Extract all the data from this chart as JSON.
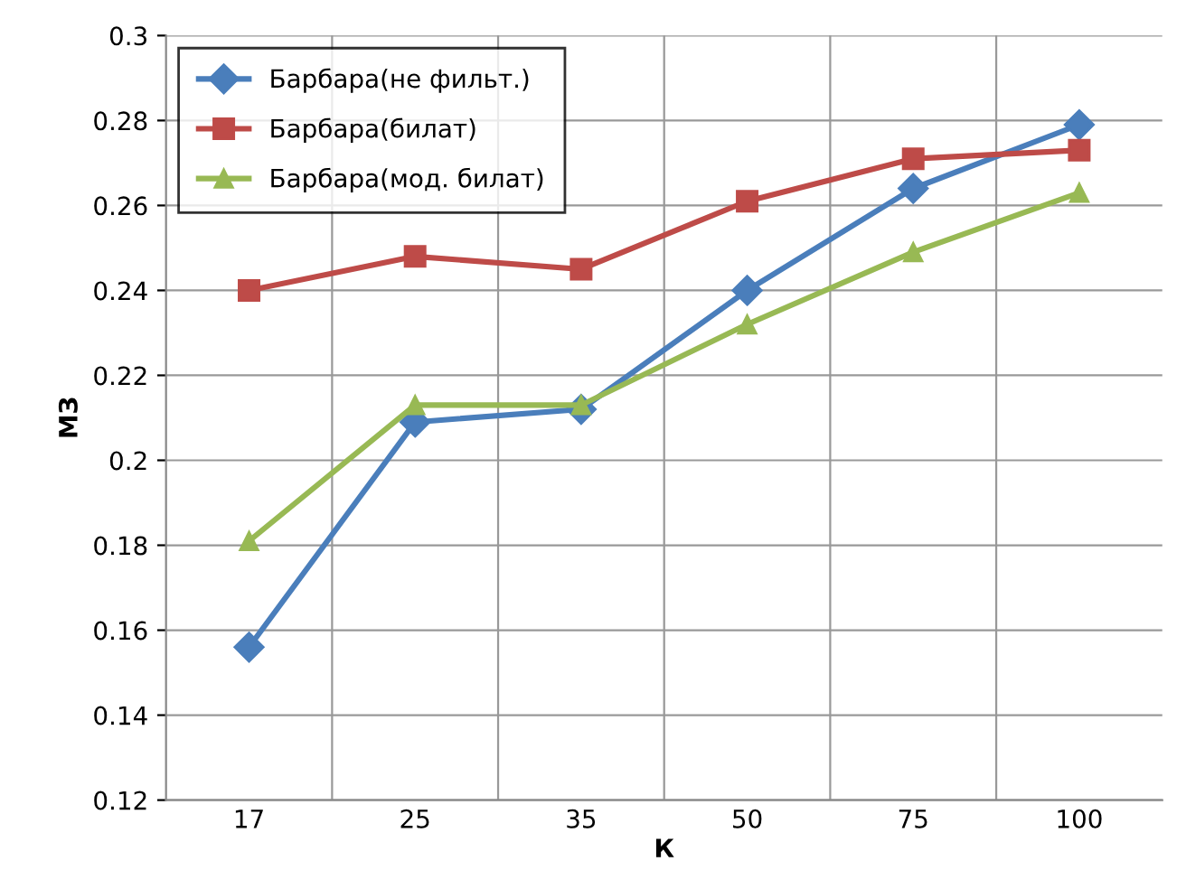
{
  "chart_data": {
    "type": "line",
    "xlabel": "К",
    "ylabel": "МЗ",
    "categories": [
      "17",
      "25",
      "35",
      "50",
      "75",
      "100"
    ],
    "series": [
      {
        "name": "Барбара(не фильт.)",
        "color": "#4a7ebb",
        "marker": "diamond",
        "values": [
          0.156,
          0.209,
          0.212,
          0.24,
          0.264,
          0.279
        ]
      },
      {
        "name": "Барбара(билат)",
        "color": "#be4b48",
        "marker": "square",
        "values": [
          0.24,
          0.248,
          0.245,
          0.261,
          0.271,
          0.273
        ]
      },
      {
        "name": "Барбара(мод. билат)",
        "color": "#98b954",
        "marker": "triangle",
        "values": [
          0.181,
          0.213,
          0.213,
          0.232,
          0.249,
          0.263
        ]
      }
    ],
    "ylim": [
      0.12,
      0.3
    ],
    "yticks": [
      0.12,
      0.14,
      0.16,
      0.18,
      0.2,
      0.22,
      0.24,
      0.26,
      0.28,
      0.3
    ],
    "grid": true,
    "legend": "top left",
    "line_style": "solid"
  }
}
